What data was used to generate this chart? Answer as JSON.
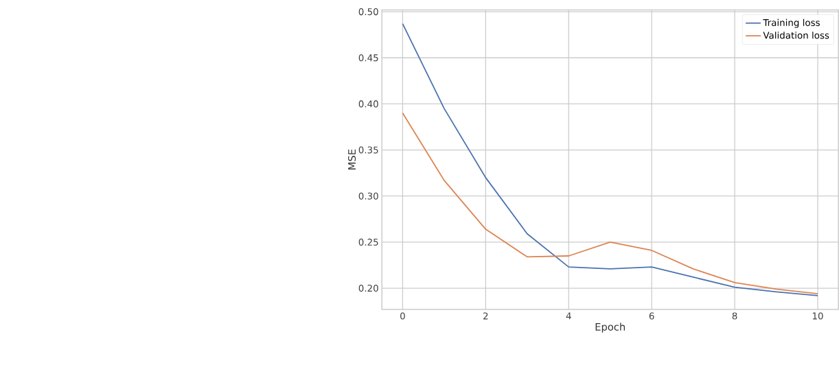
{
  "chart_data": {
    "type": "line",
    "xlabel": "Epoch",
    "ylabel": "MSE",
    "x": [
      0,
      1,
      2,
      3,
      4,
      5,
      6,
      7,
      8,
      9,
      10
    ],
    "series": [
      {
        "name": "Training loss",
        "color": "#4c72b0",
        "values": [
          0.487,
          0.395,
          0.32,
          0.259,
          0.223,
          0.221,
          0.223,
          0.212,
          0.201,
          0.196,
          0.192
        ]
      },
      {
        "name": "Validation loss",
        "color": "#dd8452",
        "values": [
          0.39,
          0.317,
          0.264,
          0.234,
          0.235,
          0.25,
          0.241,
          0.221,
          0.206,
          0.199,
          0.194
        ]
      }
    ],
    "xlim": [
      -0.5,
      10.5
    ],
    "ylim": [
      0.177,
      0.502
    ],
    "xticks": [
      0,
      2,
      4,
      6,
      8,
      10
    ],
    "yticks": [
      {
        "value": 0.2,
        "label": "0.20"
      },
      {
        "value": 0.25,
        "label": "0.25"
      },
      {
        "value": 0.3,
        "label": "0.30"
      },
      {
        "value": 0.35,
        "label": "0.35"
      },
      {
        "value": 0.4,
        "label": "0.40"
      },
      {
        "value": 0.45,
        "label": "0.45"
      },
      {
        "value": 0.5,
        "label": "0.50"
      }
    ],
    "grid": true,
    "legend": "top right",
    "line_style": "solid",
    "marker": "none"
  }
}
